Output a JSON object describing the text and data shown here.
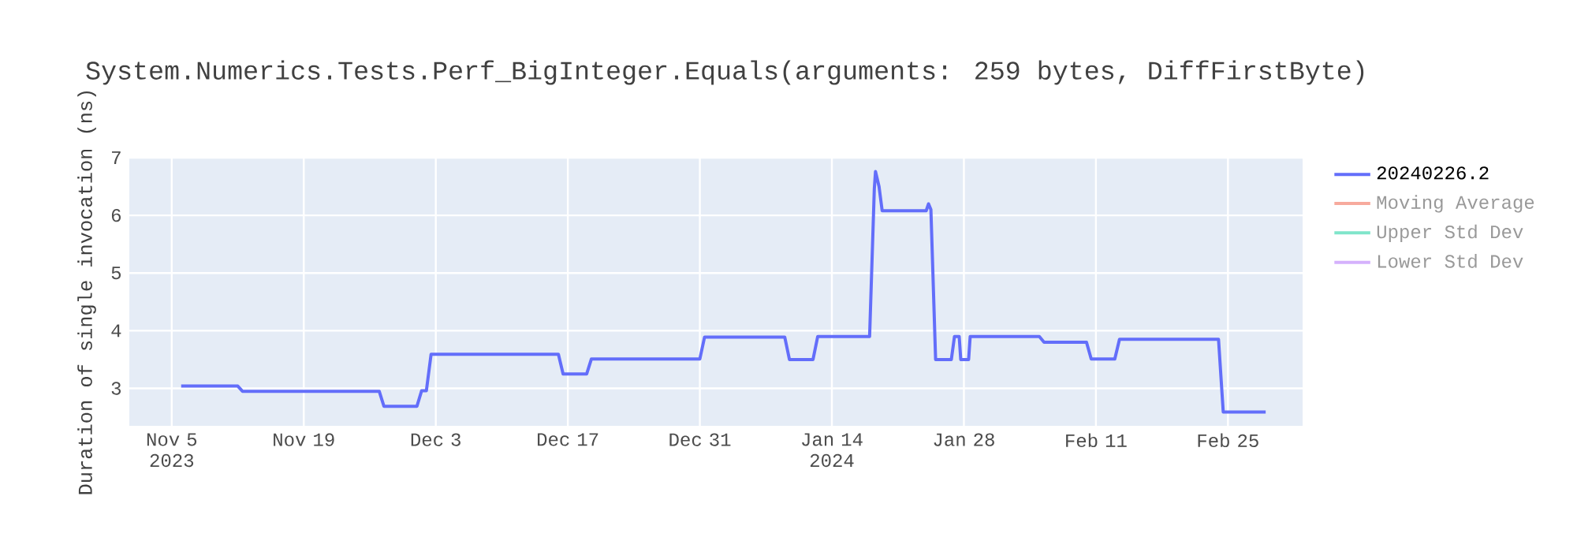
{
  "chart_data": {
    "type": "line",
    "title": "System.Numerics.Tests.Perf_BigInteger.Equals(arguments: 259 bytes, DiffFirstByte)",
    "ylabel": "Duration of single invocation (ns)",
    "xlim": [
      "2023-10-31T12:00",
      "2024-03-03T22:00"
    ],
    "xticks": [
      {
        "value": "2023-11-05",
        "label": "Nov 5 2023"
      },
      {
        "value": "2023-11-19",
        "label": "Nov 19"
      },
      {
        "value": "2023-12-03",
        "label": "Dec 3"
      },
      {
        "value": "2023-12-17",
        "label": "Dec 17"
      },
      {
        "value": "2023-12-31",
        "label": "Dec 31"
      },
      {
        "value": "2024-01-14",
        "label": "Jan 14 2024"
      },
      {
        "value": "2024-01-28",
        "label": "Jan 28"
      },
      {
        "value": "2024-02-11",
        "label": "Feb 11"
      },
      {
        "value": "2024-02-25",
        "label": "Feb 25"
      }
    ],
    "ylim": [
      2.35,
      7
    ],
    "yticks": [
      3,
      4,
      5,
      6,
      7
    ],
    "grid": true,
    "legend": "top right",
    "series": [
      {
        "name": "20240226.2",
        "color": "#636efa",
        "x": [
          "2023-11-06",
          "2023-11-12",
          "2023-11-12T12:00",
          "2023-11-27",
          "2023-11-27T12:00",
          "2023-12-01",
          "2023-12-01T12:00",
          "2023-12-02",
          "2023-12-02T12:00",
          "2023-12-16",
          "2023-12-16T12:00",
          "2023-12-19",
          "2023-12-19T12:00",
          "2023-12-31",
          "2023-12-31T12:00",
          "2024-01-09",
          "2024-01-09T12:00",
          "2024-01-12",
          "2024-01-12T12:00",
          "2024-01-18",
          "2024-01-18T12:00",
          "2024-01-18T15:00",
          "2024-01-19",
          "2024-01-19T08:00",
          "2024-01-24",
          "2024-01-24T06:00",
          "2024-01-24T12:00",
          "2024-01-25",
          "2024-01-26T16:00",
          "2024-01-27",
          "2024-01-27T12:00",
          "2024-01-27T16:00",
          "2024-01-28T12:00",
          "2024-01-28T16:00",
          "2024-02-05",
          "2024-02-05T12:00",
          "2024-02-10",
          "2024-02-10T12:00",
          "2024-02-13",
          "2024-02-13T12:00",
          "2024-02-24",
          "2024-02-24T12:00",
          "2024-02-29"
        ],
        "values": [
          3.04,
          3.04,
          2.95,
          2.95,
          2.69,
          2.69,
          2.96,
          2.96,
          3.59,
          3.59,
          3.25,
          3.25,
          3.51,
          3.51,
          3.89,
          3.89,
          3.5,
          3.5,
          3.9,
          3.9,
          6.46,
          6.76,
          6.5,
          6.08,
          6.08,
          6.2,
          6.1,
          3.5,
          3.5,
          3.9,
          3.9,
          3.5,
          3.5,
          3.9,
          3.9,
          3.8,
          3.8,
          3.51,
          3.51,
          3.85,
          3.85,
          2.59,
          2.59
        ]
      },
      {
        "name": "Moving Average",
        "color": "#f7aa9d"
      },
      {
        "name": "Upper Std Dev",
        "color": "#80e5ca"
      },
      {
        "name": "Lower Std Dev",
        "color": "#d5b1fc"
      }
    ]
  }
}
